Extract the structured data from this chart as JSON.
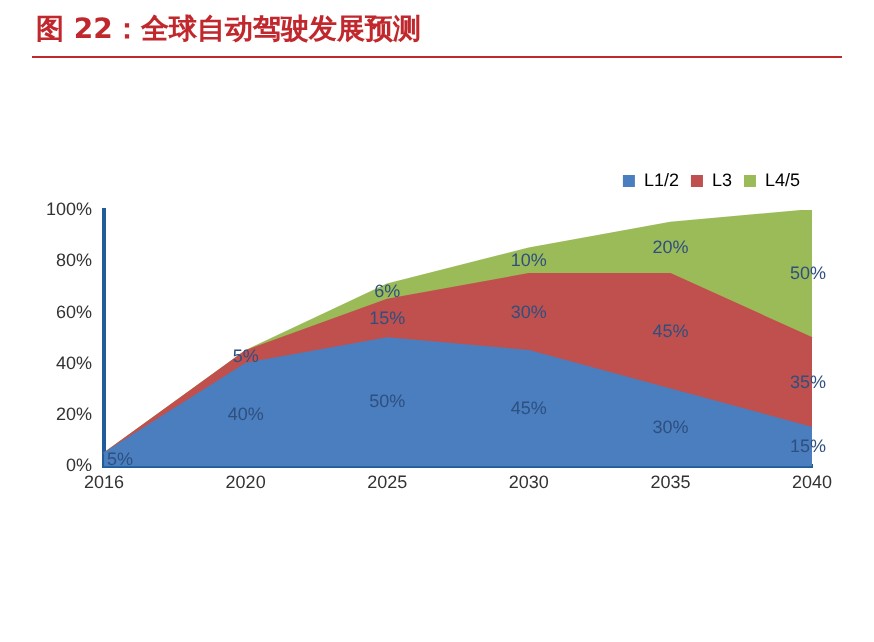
{
  "chart_data": {
    "type": "area",
    "title": "图 22：全球自动驾驶发展预测",
    "stacked": true,
    "categories": [
      "2016",
      "2020",
      "2025",
      "2030",
      "2035",
      "2040"
    ],
    "series": [
      {
        "name": "L1/2",
        "color": "#4a7ebf",
        "values": [
          5,
          40,
          50,
          45,
          30,
          15
        ],
        "value_labels": [
          "5%",
          "40%",
          "50%",
          "45%",
          "30%",
          "15%"
        ]
      },
      {
        "name": "L3",
        "color": "#c0504d",
        "values": [
          0,
          5,
          15,
          30,
          45,
          35
        ],
        "value_labels": [
          null,
          "5%",
          "15%",
          "30%",
          "45%",
          "35%"
        ]
      },
      {
        "name": "L4/5",
        "color": "#9bbb59",
        "values": [
          0,
          0,
          6,
          10,
          20,
          50
        ],
        "value_labels": [
          null,
          null,
          "6%",
          "10%",
          "20%",
          "50%"
        ]
      }
    ],
    "ylim": [
      0,
      100
    ],
    "yticks": [
      {
        "value": 0,
        "label": "0%"
      },
      {
        "value": 20,
        "label": "20%"
      },
      {
        "value": 40,
        "label": "40%"
      },
      {
        "value": 60,
        "label": "60%"
      },
      {
        "value": 80,
        "label": "80%"
      },
      {
        "value": 100,
        "label": "100%"
      }
    ],
    "grid": false,
    "legend": "top right",
    "marker": "none"
  }
}
